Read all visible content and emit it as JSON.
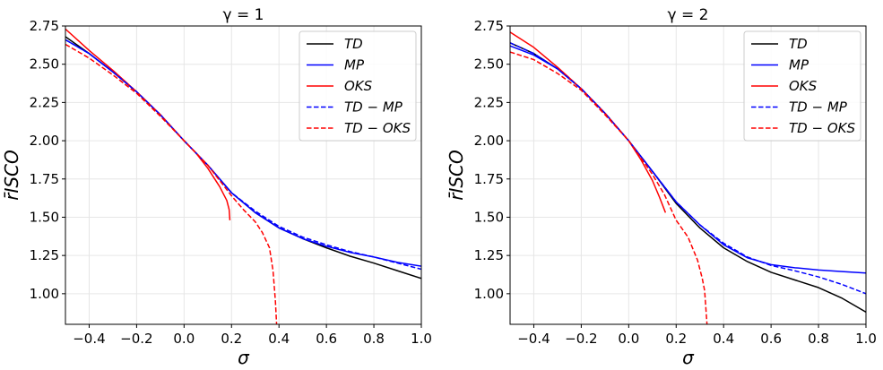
{
  "chart_data": [
    {
      "type": "line",
      "title": "γ = 1",
      "xlabel": "σ",
      "ylabel": "r̄ISCO",
      "xlim": [
        -0.5,
        1.0
      ],
      "ylim": [
        0.8,
        2.75
      ],
      "xticks": [
        -0.4,
        -0.2,
        0.0,
        0.2,
        0.4,
        0.6,
        0.8,
        1.0
      ],
      "xtick_labels": [
        "−0.4",
        "−0.2",
        "0.0",
        "0.2",
        "0.4",
        "0.6",
        "0.8",
        "1.0"
      ],
      "yticks": [
        1.0,
        1.25,
        1.5,
        1.75,
        2.0,
        2.25,
        2.5,
        2.75
      ],
      "ytick_labels": [
        "1.00",
        "1.25",
        "1.50",
        "1.75",
        "2.00",
        "2.25",
        "2.50",
        "2.75"
      ],
      "grid": true,
      "legend_position": "top-right",
      "series": [
        {
          "name": "TD",
          "color": "#000000",
          "dash": "solid",
          "x": [
            -0.5,
            -0.4,
            -0.3,
            -0.2,
            -0.1,
            0.0,
            0.1,
            0.2,
            0.3,
            0.4,
            0.5,
            0.6,
            0.7,
            0.8,
            0.9,
            1.0
          ],
          "y": [
            2.68,
            2.57,
            2.45,
            2.32,
            2.17,
            2.0,
            1.84,
            1.66,
            1.53,
            1.43,
            1.36,
            1.3,
            1.245,
            1.2,
            1.15,
            1.1
          ]
        },
        {
          "name": "MP",
          "color": "#0000ff",
          "dash": "solid",
          "x": [
            -0.5,
            -0.4,
            -0.3,
            -0.2,
            -0.1,
            0.0,
            0.1,
            0.2,
            0.3,
            0.4,
            0.5,
            0.6,
            0.7,
            0.8,
            0.9,
            1.0
          ],
          "y": [
            2.66,
            2.57,
            2.45,
            2.32,
            2.17,
            2.0,
            1.84,
            1.66,
            1.53,
            1.43,
            1.36,
            1.31,
            1.27,
            1.24,
            1.205,
            1.18
          ]
        },
        {
          "name": "OKS",
          "color": "#ff0000",
          "dash": "solid",
          "x": [
            -0.5,
            -0.4,
            -0.3,
            -0.2,
            -0.1,
            0.0,
            0.05,
            0.1,
            0.15,
            0.18,
            0.19,
            0.193
          ],
          "y": [
            2.73,
            2.59,
            2.46,
            2.32,
            2.17,
            2.0,
            1.92,
            1.82,
            1.7,
            1.61,
            1.55,
            1.48
          ]
        },
        {
          "name": "TD − MP",
          "color": "#0000ff",
          "dash": "dashed",
          "x": [
            -0.5,
            -0.4,
            -0.3,
            -0.2,
            -0.1,
            0.0,
            0.1,
            0.2,
            0.3,
            0.4,
            0.5,
            0.6,
            0.7,
            0.8,
            0.9,
            1.0
          ],
          "y": [
            2.66,
            2.57,
            2.45,
            2.32,
            2.17,
            2.0,
            1.84,
            1.66,
            1.54,
            1.44,
            1.37,
            1.32,
            1.275,
            1.24,
            1.2,
            1.16
          ]
        },
        {
          "name": "TD − OKS",
          "color": "#ff0000",
          "dash": "dashed",
          "x": [
            -0.5,
            -0.4,
            -0.3,
            -0.2,
            -0.1,
            0.0,
            0.1,
            0.2,
            0.25,
            0.3,
            0.33,
            0.36,
            0.375,
            0.385,
            0.39
          ],
          "y": [
            2.63,
            2.54,
            2.43,
            2.31,
            2.16,
            2.0,
            1.84,
            1.64,
            1.55,
            1.47,
            1.4,
            1.3,
            1.15,
            0.95,
            0.8
          ]
        }
      ]
    },
    {
      "type": "line",
      "title": "γ = 2",
      "xlabel": "σ",
      "ylabel": "r̄ISCO",
      "xlim": [
        -0.5,
        1.0
      ],
      "ylim": [
        0.8,
        2.75
      ],
      "xticks": [
        -0.4,
        -0.2,
        0.0,
        0.2,
        0.4,
        0.6,
        0.8,
        1.0
      ],
      "xtick_labels": [
        "−0.4",
        "−0.2",
        "0.0",
        "0.2",
        "0.4",
        "0.6",
        "0.8",
        "1.0"
      ],
      "yticks": [
        1.0,
        1.25,
        1.5,
        1.75,
        2.0,
        2.25,
        2.5,
        2.75
      ],
      "ytick_labels": [
        "1.00",
        "1.25",
        "1.50",
        "1.75",
        "2.00",
        "2.25",
        "2.50",
        "2.75"
      ],
      "grid": true,
      "legend_position": "top-right",
      "series": [
        {
          "name": "TD",
          "color": "#000000",
          "dash": "solid",
          "x": [
            -0.5,
            -0.4,
            -0.3,
            -0.2,
            -0.1,
            0.0,
            0.1,
            0.2,
            0.3,
            0.4,
            0.5,
            0.6,
            0.7,
            0.8,
            0.9,
            1.0
          ],
          "y": [
            2.64,
            2.57,
            2.47,
            2.34,
            2.18,
            2.0,
            1.8,
            1.59,
            1.43,
            1.3,
            1.21,
            1.14,
            1.09,
            1.04,
            0.97,
            0.88
          ]
        },
        {
          "name": "MP",
          "color": "#0000ff",
          "dash": "solid",
          "x": [
            -0.5,
            -0.4,
            -0.3,
            -0.2,
            -0.1,
            0.0,
            0.1,
            0.2,
            0.3,
            0.4,
            0.5,
            0.6,
            0.7,
            0.8,
            0.9,
            1.0
          ],
          "y": [
            2.62,
            2.56,
            2.47,
            2.34,
            2.18,
            2.0,
            1.8,
            1.6,
            1.45,
            1.32,
            1.235,
            1.19,
            1.17,
            1.155,
            1.145,
            1.135
          ]
        },
        {
          "name": "OKS",
          "color": "#ff0000",
          "dash": "solid",
          "x": [
            -0.5,
            -0.4,
            -0.3,
            -0.2,
            -0.1,
            0.0,
            0.05,
            0.1,
            0.13,
            0.15,
            0.155
          ],
          "y": [
            2.71,
            2.61,
            2.48,
            2.34,
            2.18,
            2.0,
            1.88,
            1.74,
            1.63,
            1.55,
            1.53
          ]
        },
        {
          "name": "TD − MP",
          "color": "#0000ff",
          "dash": "dashed",
          "x": [
            -0.5,
            -0.4,
            -0.3,
            -0.2,
            -0.1,
            0.0,
            0.1,
            0.2,
            0.3,
            0.4,
            0.5,
            0.6,
            0.7,
            0.8,
            0.9,
            1.0
          ],
          "y": [
            2.64,
            2.57,
            2.47,
            2.34,
            2.18,
            2.0,
            1.8,
            1.6,
            1.45,
            1.33,
            1.24,
            1.185,
            1.15,
            1.11,
            1.06,
            1.0
          ]
        },
        {
          "name": "TD − OKS",
          "color": "#ff0000",
          "dash": "dashed",
          "x": [
            -0.5,
            -0.4,
            -0.3,
            -0.2,
            -0.1,
            0.0,
            0.1,
            0.15,
            0.2,
            0.25,
            0.29,
            0.31,
            0.32,
            0.33
          ],
          "y": [
            2.58,
            2.53,
            2.44,
            2.33,
            2.17,
            2.0,
            1.78,
            1.65,
            1.48,
            1.37,
            1.22,
            1.1,
            1.02,
            0.8
          ]
        }
      ]
    }
  ]
}
